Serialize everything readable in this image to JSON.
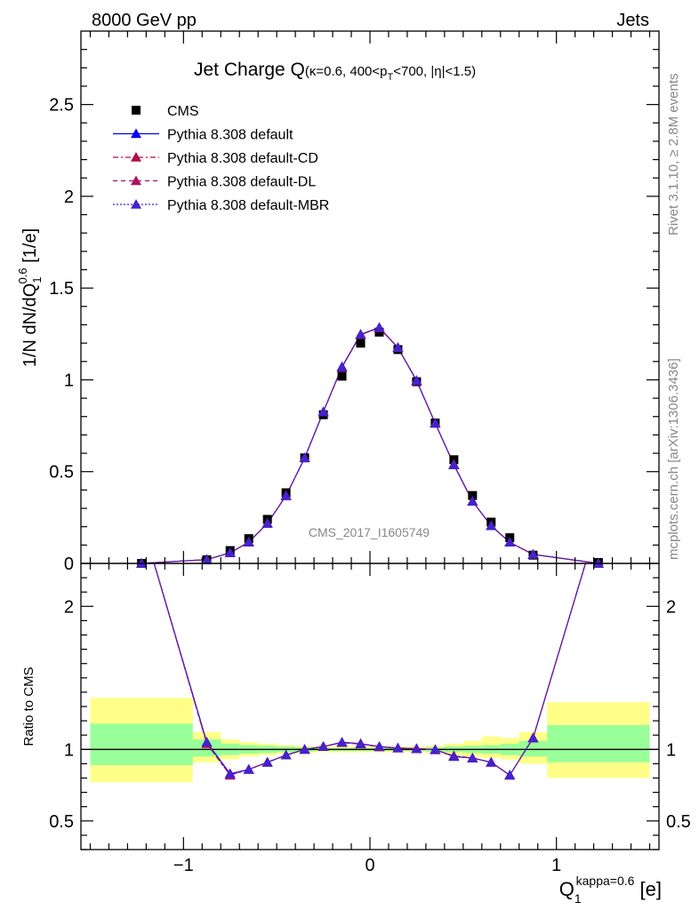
{
  "header": {
    "left": "8000 GeV pp",
    "right": "Jets"
  },
  "title": {
    "main": "Jet Charge Q",
    "detail": "(κ=0.6, 400<p",
    "detail_sub": "T",
    "detail_rest": "<700, |η|<1.5)"
  },
  "side_labels": {
    "rivet": "Rivet 3.1.10, ≥ 2.8M events",
    "mcplots": "mcplots.cern.ch [arXiv:1306.3436]"
  },
  "watermark": "CMS_2017_I1605749",
  "axes": {
    "top_ylabel_main": "1/N dN/dQ",
    "top_ylabel_sub": "1",
    "top_ylabel_sup": "0.6",
    "top_ylabel_unit": " [1/e]",
    "bottom_ylabel": "Ratio to CMS",
    "xlabel_main": "Q",
    "xlabel_sub": "1",
    "xlabel_sup": "kappa=0.6",
    "xlabel_unit": " [e]"
  },
  "legend": [
    {
      "label": "CMS",
      "marker": "square",
      "color": "#000000",
      "dash": ""
    },
    {
      "label": "Pythia 8.308 default",
      "marker": "triangle",
      "color": "#0000ee",
      "dash": ""
    },
    {
      "label": "Pythia 8.308 default-CD",
      "marker": "triangle",
      "color": "#aa1144",
      "dash": "6,3,2,3"
    },
    {
      "label": "Pythia 8.308 default-DL",
      "marker": "triangle",
      "color": "#aa1166",
      "dash": "5,4"
    },
    {
      "label": "Pythia 8.308 default-MBR",
      "marker": "triangle",
      "color": "#4422cc",
      "dash": "2,2"
    }
  ],
  "chart_data": {
    "type": "line",
    "xlim": [
      -1.55,
      1.55
    ],
    "top": {
      "ylim": [
        0,
        2.9
      ],
      "yticks": [
        0,
        0.5,
        1,
        1.5,
        2,
        2.5
      ],
      "ytick_labels": [
        "0",
        "0.5",
        "1",
        "1.5",
        "2",
        "2.5"
      ]
    },
    "bottom": {
      "ylim": [
        0.3,
        2.3
      ],
      "yticks": [
        0.5,
        1,
        2
      ],
      "ytick_labels": [
        "0.5",
        "1",
        "2"
      ]
    },
    "xticks": [
      -1,
      0,
      1
    ],
    "xtick_labels": [
      "−1",
      "0",
      "1"
    ],
    "x": [
      -1.225,
      -0.875,
      -0.75,
      -0.65,
      -0.55,
      -0.45,
      -0.35,
      -0.25,
      -0.15,
      -0.05,
      0.05,
      0.15,
      0.25,
      0.35,
      0.45,
      0.55,
      0.65,
      0.75,
      0.875,
      1.225
    ],
    "cms": [
      0.0,
      0.02,
      0.07,
      0.135,
      0.24,
      0.385,
      0.575,
      0.81,
      1.02,
      1.2,
      1.26,
      1.165,
      0.99,
      0.765,
      0.565,
      0.37,
      0.225,
      0.14,
      0.045,
      0.005
    ],
    "series": [
      {
        "name": "Pythia 8.308 default",
        "values": [
          0.0,
          0.021,
          0.058,
          0.116,
          0.218,
          0.369,
          0.575,
          0.826,
          1.071,
          1.248,
          1.285,
          1.176,
          0.996,
          0.764,
          0.537,
          0.338,
          0.205,
          0.115,
          0.049,
          0.0
        ]
      },
      {
        "name": "Pythia 8.308 default-CD",
        "values": [
          0.0,
          0.021,
          0.057,
          0.116,
          0.218,
          0.369,
          0.575,
          0.826,
          1.068,
          1.246,
          1.283,
          1.175,
          0.995,
          0.763,
          0.54,
          0.338,
          0.205,
          0.115,
          0.049,
          0.0
        ]
      },
      {
        "name": "Pythia 8.308 default-DL",
        "values": [
          0.0,
          0.021,
          0.057,
          0.116,
          0.218,
          0.369,
          0.575,
          0.826,
          1.068,
          1.246,
          1.283,
          1.175,
          0.995,
          0.763,
          0.54,
          0.338,
          0.205,
          0.115,
          0.049,
          0.0
        ]
      },
      {
        "name": "Pythia 8.308 default-MBR",
        "values": [
          0.0,
          0.021,
          0.058,
          0.116,
          0.218,
          0.369,
          0.575,
          0.826,
          1.071,
          1.248,
          1.285,
          1.176,
          0.996,
          0.764,
          0.537,
          0.338,
          0.205,
          0.115,
          0.049,
          0.0
        ]
      }
    ],
    "ratio": [
      {
        "name": "Pythia 8.308 default",
        "values": [
          2.6,
          1.05,
          0.83,
          0.86,
          0.91,
          0.96,
          1.0,
          1.02,
          1.05,
          1.04,
          1.02,
          1.01,
          1.005,
          0.999,
          0.95,
          0.94,
          0.91,
          0.82,
          1.08,
          2.6
        ]
      },
      {
        "name": "Pythia 8.308 default-CD",
        "values": [
          2.6,
          1.04,
          0.82,
          0.86,
          0.91,
          0.96,
          1.0,
          1.02,
          1.047,
          1.038,
          1.018,
          1.009,
          1.005,
          0.997,
          0.955,
          0.94,
          0.91,
          0.82,
          1.08,
          2.6
        ]
      },
      {
        "name": "Pythia 8.308 default-DL",
        "values": [
          2.6,
          1.04,
          0.82,
          0.86,
          0.91,
          0.96,
          1.0,
          1.02,
          1.047,
          1.038,
          1.018,
          1.009,
          1.005,
          0.997,
          0.955,
          0.94,
          0.91,
          0.82,
          1.08,
          2.6
        ]
      },
      {
        "name": "Pythia 8.308 default-MBR",
        "values": [
          2.6,
          1.05,
          0.83,
          0.86,
          0.91,
          0.96,
          1.0,
          1.02,
          1.05,
          1.04,
          1.02,
          1.01,
          1.005,
          0.999,
          0.95,
          0.94,
          0.91,
          0.82,
          1.08,
          2.6
        ]
      }
    ],
    "uncertainty_bands": {
      "bin_edges": [
        -1.5,
        -0.95,
        -0.8,
        -0.7,
        -0.6,
        -0.5,
        -0.4,
        -0.3,
        -0.2,
        -0.1,
        0.0,
        0.1,
        0.2,
        0.3,
        0.4,
        0.5,
        0.6,
        0.7,
        0.8,
        0.95,
        1.5
      ],
      "inner": [
        [
          0.89,
          1.18
        ],
        [
          0.95,
          1.07
        ],
        [
          0.96,
          1.04
        ],
        [
          0.97,
          1.03
        ],
        [
          0.975,
          1.025
        ],
        [
          0.98,
          1.02
        ],
        [
          0.985,
          1.015
        ],
        [
          0.99,
          1.01
        ],
        [
          0.99,
          1.01
        ],
        [
          0.99,
          1.01
        ],
        [
          0.99,
          1.01
        ],
        [
          0.99,
          1.01
        ],
        [
          0.99,
          1.01
        ],
        [
          0.985,
          1.015
        ],
        [
          0.98,
          1.02
        ],
        [
          0.975,
          1.025
        ],
        [
          0.97,
          1.03
        ],
        [
          0.96,
          1.04
        ],
        [
          0.95,
          1.06
        ],
        [
          0.91,
          1.17
        ]
      ],
      "outer": [
        [
          0.77,
          1.36
        ],
        [
          0.91,
          1.12
        ],
        [
          0.93,
          1.07
        ],
        [
          0.95,
          1.05
        ],
        [
          0.96,
          1.04
        ],
        [
          0.97,
          1.03
        ],
        [
          0.975,
          1.025
        ],
        [
          0.98,
          1.02
        ],
        [
          0.98,
          1.02
        ],
        [
          0.98,
          1.02
        ],
        [
          0.98,
          1.02
        ],
        [
          0.98,
          1.02
        ],
        [
          0.98,
          1.02
        ],
        [
          0.975,
          1.025
        ],
        [
          0.96,
          1.04
        ],
        [
          0.95,
          1.06
        ],
        [
          0.94,
          1.09
        ],
        [
          0.93,
          1.08
        ],
        [
          0.9,
          1.12
        ],
        [
          0.8,
          1.33
        ]
      ],
      "inner_color": "#99ff99",
      "outer_color": "#ffff88"
    }
  }
}
